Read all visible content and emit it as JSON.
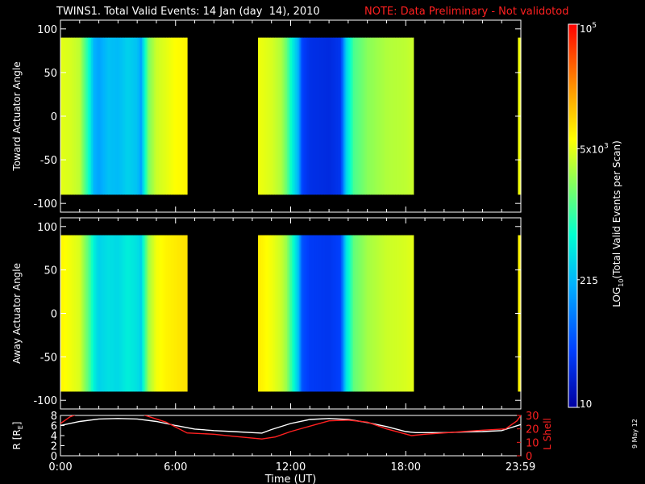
{
  "title": {
    "main": "TWINS1. Total Valid Events: 14 Jan (day  14), 2010",
    "note": "NOTE: Data Preliminary - Not validotod"
  },
  "stamp": "9 May 12",
  "colors": {
    "background": "#000000",
    "axes": "#ffffff",
    "note": "#ff2020",
    "l_shell": "#ff2020",
    "r_line": "#ffffff"
  },
  "chart_data": [
    {
      "type": "heatmap",
      "panel": "top",
      "ylabel": "Toward Actuator Angle",
      "xlim": [
        0,
        24
      ],
      "ylim": [
        -110,
        110
      ],
      "yticks": [
        100,
        50,
        0,
        -50,
        -100
      ],
      "ytick_labels": [
        "100",
        "50",
        "0",
        "-50",
        "-100"
      ],
      "angle_range": [
        -90,
        90
      ],
      "data_intervals": [
        [
          0.0,
          6.6
        ],
        [
          10.3,
          18.4
        ],
        [
          23.85,
          24.0
        ]
      ],
      "time_profile_log10": [
        [
          0.0,
          3.7
        ],
        [
          0.5,
          3.65
        ],
        [
          1.0,
          3.55
        ],
        [
          1.5,
          2.8
        ],
        [
          1.75,
          2.3
        ],
        [
          2.0,
          2.2
        ],
        [
          2.5,
          2.4
        ],
        [
          3.0,
          2.35
        ],
        [
          3.5,
          2.5
        ],
        [
          4.0,
          2.4
        ],
        [
          4.2,
          2.2
        ],
        [
          4.4,
          2.8
        ],
        [
          4.6,
          3.3
        ],
        [
          5.0,
          3.6
        ],
        [
          5.5,
          3.7
        ],
        [
          6.0,
          3.8
        ],
        [
          6.6,
          3.85
        ],
        [
          10.3,
          3.75
        ],
        [
          11.0,
          3.65
        ],
        [
          11.5,
          3.5
        ],
        [
          11.8,
          3.2
        ],
        [
          12.1,
          2.7
        ],
        [
          12.4,
          2.3
        ],
        [
          12.6,
          1.6
        ],
        [
          13.0,
          1.45
        ],
        [
          14.0,
          1.4
        ],
        [
          14.6,
          1.5
        ],
        [
          14.9,
          2.5
        ],
        [
          15.3,
          3.1
        ],
        [
          16.0,
          3.35
        ],
        [
          17.0,
          3.5
        ],
        [
          18.0,
          3.55
        ],
        [
          18.4,
          3.6
        ],
        [
          23.85,
          3.75
        ],
        [
          24.0,
          3.75
        ]
      ]
    },
    {
      "type": "heatmap",
      "panel": "middle",
      "ylabel": "Away Actuator Angle",
      "xlim": [
        0,
        24
      ],
      "ylim": [
        -110,
        110
      ],
      "yticks": [
        100,
        50,
        0,
        -50,
        -100
      ],
      "ytick_labels": [
        "100",
        "50",
        "0",
        "-50",
        "-100"
      ],
      "angle_range": [
        -90,
        90
      ],
      "data_intervals": [
        [
          0.0,
          6.6
        ],
        [
          10.3,
          18.4
        ],
        [
          23.85,
          24.0
        ]
      ],
      "time_profile_log10": [
        [
          0.0,
          3.85
        ],
        [
          0.5,
          3.75
        ],
        [
          1.0,
          3.65
        ],
        [
          1.5,
          3.1
        ],
        [
          1.75,
          2.7
        ],
        [
          2.0,
          2.5
        ],
        [
          2.5,
          2.6
        ],
        [
          3.0,
          2.55
        ],
        [
          3.5,
          2.7
        ],
        [
          4.0,
          2.6
        ],
        [
          4.2,
          2.5
        ],
        [
          4.4,
          3.0
        ],
        [
          4.6,
          3.45
        ],
        [
          5.0,
          3.75
        ],
        [
          5.5,
          3.85
        ],
        [
          6.0,
          3.9
        ],
        [
          6.6,
          3.95
        ],
        [
          10.3,
          3.9
        ],
        [
          11.0,
          3.75
        ],
        [
          11.5,
          3.6
        ],
        [
          11.8,
          3.4
        ],
        [
          12.1,
          2.9
        ],
        [
          12.4,
          2.4
        ],
        [
          12.6,
          1.7
        ],
        [
          13.0,
          1.55
        ],
        [
          14.0,
          1.5
        ],
        [
          14.6,
          1.6
        ],
        [
          14.9,
          2.6
        ],
        [
          15.3,
          3.2
        ],
        [
          16.0,
          3.45
        ],
        [
          17.0,
          3.6
        ],
        [
          18.0,
          3.65
        ],
        [
          18.4,
          3.7
        ],
        [
          23.85,
          3.85
        ],
        [
          24.0,
          3.85
        ]
      ]
    },
    {
      "type": "line",
      "panel": "bottom",
      "xlabel": "Time (UT)",
      "xticks": [
        0,
        6,
        12,
        18,
        23.983
      ],
      "xtick_labels": [
        "0:00",
        "6:00",
        "12:00",
        "18:00",
        "23:59"
      ],
      "xlim": [
        0,
        24
      ],
      "ylabel_left": "R [RE]",
      "ylabel_left_text": "R [R",
      "ylabel_left_sub": "E",
      "ylabel_left_close": "]",
      "ylim_left": [
        0,
        8
      ],
      "yticks_left": [
        0,
        2,
        4,
        6,
        8
      ],
      "ylabel_right": "L Shell",
      "ylim_right": [
        0,
        30
      ],
      "yticks_right": [
        0,
        10,
        20,
        30
      ],
      "series": [
        {
          "name": "R",
          "axis": "left",
          "color": "#ffffff",
          "x": [
            0,
            1,
            2,
            3,
            4,
            5,
            6,
            7,
            8,
            9,
            10,
            10.5,
            11,
            12,
            13,
            14,
            15,
            16,
            17,
            18,
            18.5,
            19,
            20,
            21,
            22,
            23,
            24
          ],
          "y": [
            6.0,
            6.8,
            7.3,
            7.4,
            7.3,
            6.8,
            6.0,
            5.3,
            5.0,
            4.8,
            4.6,
            4.5,
            5.2,
            6.4,
            7.2,
            7.4,
            7.2,
            6.6,
            5.8,
            4.8,
            4.6,
            4.6,
            4.6,
            4.7,
            4.8,
            5.0,
            6.2
          ]
        },
        {
          "name": "L Shell",
          "axis": "right",
          "color": "#ff2020",
          "x": [
            0,
            0.5,
            0.9,
            4.2,
            5.5,
            6.6,
            8,
            9,
            10.5,
            11.2,
            12,
            13,
            14,
            15,
            16,
            17,
            18.3,
            19,
            20,
            21,
            22,
            23.2,
            23.8,
            24
          ],
          "y": [
            24,
            29,
            31,
            31,
            25,
            17,
            16,
            14.5,
            12.5,
            14,
            18,
            22,
            26,
            26.5,
            25,
            20,
            15,
            16,
            17,
            18,
            19,
            20,
            26,
            30
          ]
        }
      ]
    },
    {
      "type": "colorbar",
      "label_text": "LOG",
      "label_sub": "10",
      "label_rest": "(Total Valid  Events per Scan)",
      "scale": "log",
      "range": [
        10,
        100000
      ],
      "tick_labels": [
        {
          "value": 100000,
          "base": "10",
          "exp": "5"
        },
        {
          "value": 5000,
          "base": "5x10",
          "exp": "3"
        },
        {
          "value": 215,
          "base": "215",
          "exp": ""
        },
        {
          "value": 10,
          "base": "10",
          "exp": ""
        }
      ]
    }
  ]
}
